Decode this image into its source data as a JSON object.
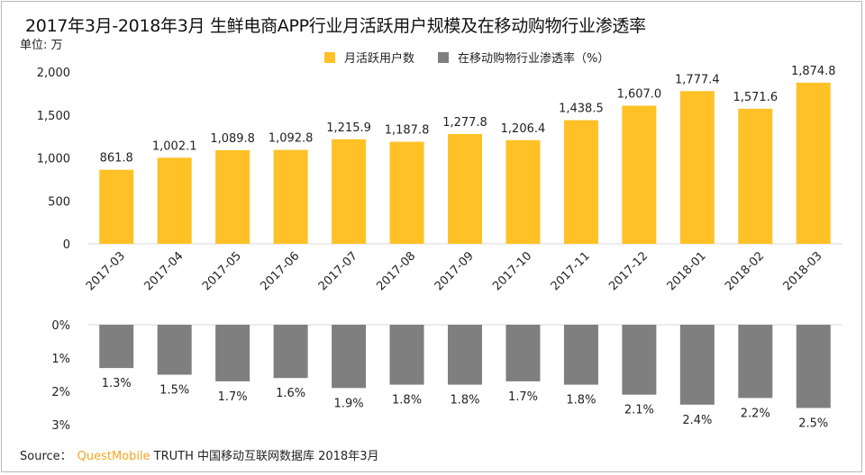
{
  "title": "2017年3月-2018年3月 生鲜电商APP行业月活跃用户规模及在移动购物行业渗透率",
  "unit_label": "单位: 万",
  "legend": [
    {
      "name": "月活跃用户数",
      "color": "#ffc125"
    },
    {
      "name": "在移动购物行业渗透率（%）",
      "color": "#7f7f7f"
    }
  ],
  "source": {
    "prefix": "Source：",
    "brand": "QuestMobile",
    "rest": "TRUTH 中国移动互联网数据库 2018年3月"
  },
  "chart_data": [
    {
      "type": "bar",
      "categories": [
        "2017-03",
        "2017-04",
        "2017-05",
        "2017-06",
        "2017-07",
        "2017-08",
        "2017-09",
        "2017-10",
        "2017-11",
        "2017-12",
        "2018-01",
        "2018-02",
        "2018-03"
      ],
      "series": [
        {
          "name": "月活跃用户数",
          "values": [
            861.8,
            1002.1,
            1089.8,
            1092.8,
            1215.9,
            1187.8,
            1277.8,
            1206.4,
            1438.5,
            1607.0,
            1777.4,
            1571.6,
            1874.8
          ]
        }
      ],
      "value_labels": [
        "861.8",
        "1,002.1",
        "1,089.8",
        "1,092.8",
        "1,215.9",
        "1,187.8",
        "1,277.8",
        "1,206.4",
        "1,438.5",
        "1,607.0",
        "1,777.4",
        "1,571.6",
        "1,874.8"
      ],
      "ylim": [
        0,
        2000
      ],
      "yticks": [
        "0",
        "500",
        "1,000",
        "1,500",
        "2,000"
      ],
      "color": "#ffc125"
    },
    {
      "type": "bar",
      "orientation": "downward",
      "categories": [
        "2017-03",
        "2017-04",
        "2017-05",
        "2017-06",
        "2017-07",
        "2017-08",
        "2017-09",
        "2017-10",
        "2017-11",
        "2017-12",
        "2018-01",
        "2018-02",
        "2018-03"
      ],
      "series": [
        {
          "name": "在移动购物行业渗透率（%）",
          "values": [
            1.3,
            1.5,
            1.7,
            1.6,
            1.9,
            1.8,
            1.8,
            1.7,
            1.8,
            2.1,
            2.4,
            2.2,
            2.5
          ]
        }
      ],
      "value_labels": [
        "1.3%",
        "1.5%",
        "1.7%",
        "1.6%",
        "1.9%",
        "1.8%",
        "1.8%",
        "1.7%",
        "1.8%",
        "2.1%",
        "2.4%",
        "2.2%",
        "2.5%"
      ],
      "ylim": [
        0,
        3
      ],
      "yticks": [
        "0%",
        "1%",
        "2%",
        "3%"
      ],
      "color": "#7f7f7f"
    }
  ]
}
